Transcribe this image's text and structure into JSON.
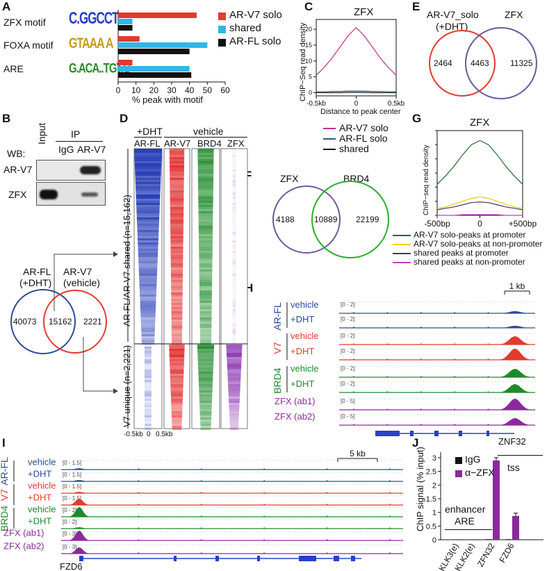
{
  "panels": {
    "A": "A",
    "B": "B",
    "C": "C",
    "D": "D",
    "E": "E",
    "F": "F",
    "G": "G",
    "H": "H",
    "I": "I",
    "J": "J"
  },
  "colors": {
    "v7": "#e23a2e",
    "shared": "#2fb6e8",
    "fl": "#111111",
    "blue": "#2a4a9a",
    "green": "#1e8a2a",
    "purple": "#8a2a9a",
    "venn_purple": "#6a5a9a",
    "venn_green": "#2ab02a"
  },
  "A": {
    "rows": [
      "ZFX motif",
      "FOXA motif",
      "ARE"
    ],
    "motif_seqs": [
      "C.GGCCT",
      "GTAAA A",
      "G.ACA..TGT.C"
    ],
    "legend": [
      "AR-V7 solo",
      "shared",
      "AR-FL solo"
    ],
    "xlabel": "% peak with motif",
    "ticks": [
      "0",
      "10",
      "20",
      "30",
      "40",
      "50",
      "60"
    ]
  },
  "chart_data": [
    {
      "type": "bar",
      "orientation": "horizontal",
      "categories": [
        "ZFX motif",
        "FOXA motif",
        "ARE"
      ],
      "series": [
        {
          "name": "AR-V7 solo",
          "values": [
            44,
            12,
            8
          ]
        },
        {
          "name": "shared",
          "values": [
            8,
            50,
            40
          ]
        },
        {
          "name": "AR-FL solo",
          "values": [
            8,
            40,
            41
          ]
        }
      ],
      "xlabel": "% peak with motif",
      "xlim": [
        0,
        60
      ]
    },
    {
      "type": "line",
      "title": "ZFX",
      "ylabel": "ChIP-Seq read density",
      "xlabel": "Distance to peak center",
      "x_ticks": [
        "-0.5kb",
        "0",
        "0.5kb"
      ],
      "y_ticks": [
        "0",
        "5",
        "10",
        "15",
        "20"
      ],
      "ylim": [
        -1,
        22
      ],
      "x": [
        -0.5,
        -0.4,
        -0.3,
        -0.2,
        -0.1,
        0,
        0.1,
        0.2,
        0.3,
        0.4,
        0.5
      ],
      "series": [
        {
          "name": "AR-V7 solo",
          "values": [
            5.5,
            8,
            11,
            14.5,
            18,
            20.5,
            18,
            14.5,
            11,
            8,
            5.5
          ]
        },
        {
          "name": "AR-FL solo",
          "values": [
            0.3,
            0.3,
            0.4,
            0.4,
            0.5,
            0.5,
            0.5,
            0.4,
            0.4,
            0.3,
            0.3
          ]
        },
        {
          "name": "shared",
          "values": [
            0,
            0,
            0,
            0,
            0.1,
            0.1,
            0.1,
            0,
            0,
            0,
            0
          ]
        }
      ]
    },
    {
      "type": "line",
      "title": "ZFX",
      "ylabel": "ChIP-seq read density",
      "x_ticks": [
        "-500bp",
        "0",
        "+500bp"
      ],
      "x": [
        -500,
        -400,
        -300,
        -200,
        -100,
        0,
        100,
        200,
        300,
        400,
        500
      ],
      "series": [
        {
          "name": "AR-V7 solo-peaks at promoter",
          "values": [
            2.2,
            2.8,
            3.5,
            4.3,
            5.0,
            5.3,
            5.0,
            4.3,
            3.5,
            2.8,
            2.2
          ]
        },
        {
          "name": "AR-V7 solo-peaks at non-promoter",
          "values": [
            0.5,
            0.6,
            0.8,
            1.0,
            1.2,
            1.3,
            1.2,
            1.0,
            0.8,
            0.6,
            0.5
          ]
        },
        {
          "name": "shared peaks at promoter",
          "values": [
            0.4,
            0.5,
            0.6,
            0.75,
            0.9,
            0.95,
            0.9,
            0.75,
            0.6,
            0.5,
            0.4
          ]
        },
        {
          "name": "shared peaks at non-promoter",
          "values": [
            0,
            0,
            0,
            0.05,
            0.05,
            0.05,
            0.05,
            0.05,
            0,
            0,
            0
          ]
        }
      ]
    },
    {
      "type": "bar",
      "ylabel": "ChIP signal (% input)",
      "y_ticks": [
        "0",
        "0.5",
        "1",
        "1.5",
        "2",
        "2.5",
        "3"
      ],
      "ylim": [
        0,
        3.2
      ],
      "categories": [
        "KLK3(e)",
        "KLK2(e)",
        "ZFN32",
        "FZD6"
      ],
      "series": [
        {
          "name": "IgG",
          "values": [
            0.01,
            0.01,
            0.02,
            0.02
          ]
        },
        {
          "name": "α−ZFX",
          "values": [
            0.02,
            0.02,
            2.9,
            0.87
          ]
        }
      ]
    }
  ],
  "B": {
    "ip": "IP",
    "input": "Input",
    "igg": "IgG",
    "arv7": "AR-V7",
    "wb": "WB:",
    "row1": "AR-V7",
    "row2": "ZFX"
  },
  "venn_B": {
    "left_title": "AR-FL\n(+DHT)",
    "left_l1": "AR-FL",
    "left_l2": "(+DHT)",
    "right_l1": "AR-V7",
    "right_l2": "(vehicle)",
    "left": "40073",
    "mid": "15162",
    "right": "2221"
  },
  "C": {
    "title": "ZFX",
    "ylabel": "ChIP−Seq read density",
    "xlabel": "Distance to peak center",
    "xticks": [
      "-0.5kb",
      "0",
      "0.5kb"
    ],
    "yticks": [
      "0",
      "5",
      "10",
      "15",
      "20"
    ],
    "legend": [
      "AR-V7 solo",
      "AR-FL solo",
      "shared"
    ]
  },
  "D": {
    "top_dht": "+DHT",
    "top_vehicle": "vehicle",
    "cols": [
      "AR-FL",
      "AR-V7",
      "BRD4",
      "ZFX"
    ],
    "row1": "AR-FL/AR-V7 shared (n=15,162)",
    "row2": "V7 unique (n=2,221)",
    "xticks": [
      "-0.5kb",
      "0",
      "0.5kb"
    ]
  },
  "E": {
    "left_l1": "AR-V7_solo",
    "left_l2": "(+DHT)",
    "right": "ZFX",
    "left": "2464",
    "mid": "4463",
    "rightn": "11325"
  },
  "F": {
    "left": "ZFX",
    "right": "BRD4",
    "ln": "4188",
    "mid": "10889",
    "rn": "22199"
  },
  "G": {
    "title": "ZFX",
    "ylabel": "ChIP−seq read density",
    "xticks": [
      "-500bp",
      "0",
      "+500bp"
    ],
    "legend": [
      "AR-V7 solo-peaks at promoter",
      "AR-V7 solo-peaks at non-promoter",
      "shared peaks at promoter",
      "shared peaks at non-promoter"
    ]
  },
  "H": {
    "scale": "1 kb",
    "gene": "ZNF32",
    "groups": [
      "AR-FL",
      "V7",
      "BRD4"
    ],
    "zfx1": "ZFX (ab1)",
    "zfx2": "ZFX (ab2)",
    "vehicle": "vehicle",
    "dht": "+DHT",
    "ranges": [
      "[0 - 2]",
      "[0 - 2]",
      "[0 - 2]",
      "[0 - 2]",
      "[0 - 2]",
      "[0 - 2]",
      "[0 - 5]",
      "[0 - 5]"
    ]
  },
  "I": {
    "scale": "5 kb",
    "gene": "FZD6",
    "groups": [
      "AR-FL",
      "V7",
      "BRD4"
    ],
    "zfx1": "ZFX (ab1)",
    "zfx2": "ZFX (ab2)",
    "vehicle": "vehicle",
    "dht": "+DHT",
    "ranges": [
      "[0 - 1.5]",
      "[0 - 1.5]",
      "[0 - 1.5]",
      "[0 - 1.5]",
      "[0 - 2]",
      "[0 - 2]",
      "[0 - 3]",
      "[0 - 3]"
    ]
  },
  "J": {
    "ylabel": "ChIP signal (% input)",
    "legend": [
      "IgG",
      "α−ZFX"
    ],
    "yticks": [
      "0",
      "0.5",
      "1",
      "1.5",
      "2",
      "2.5",
      "3"
    ],
    "cats": [
      "KLK3(e)",
      "KLK2(e)",
      "ZFN32",
      "FZD6"
    ],
    "tss": "tss",
    "enh1": "enhancer",
    "enh2": "ARE"
  }
}
